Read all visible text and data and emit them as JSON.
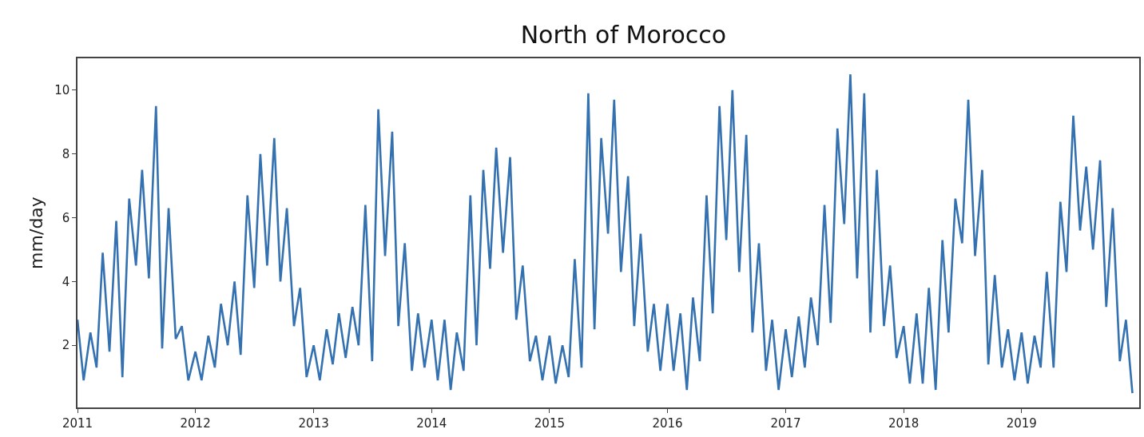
{
  "chart_data": {
    "type": "line",
    "title": "North of Morocco",
    "ylabel": "mm/day",
    "x": [
      "2011-01-01",
      "2011-01-20",
      "2011-02-10",
      "2011-03-01",
      "2011-03-20",
      "2011-04-10",
      "2011-05-01",
      "2011-05-20",
      "2011-06-10",
      "2011-07-01",
      "2011-07-20",
      "2011-08-10",
      "2011-09-01",
      "2011-09-20",
      "2011-10-10",
      "2011-11-01",
      "2011-11-20",
      "2011-12-10",
      "2012-01-01",
      "2012-01-20",
      "2012-02-10",
      "2012-03-01",
      "2012-03-20",
      "2012-04-10",
      "2012-05-01",
      "2012-05-20",
      "2012-06-10",
      "2012-07-01",
      "2012-07-20",
      "2012-08-10",
      "2012-09-01",
      "2012-09-20",
      "2012-10-10",
      "2012-11-01",
      "2012-11-20",
      "2012-12-10",
      "2013-01-01",
      "2013-01-20",
      "2013-02-10",
      "2013-03-01",
      "2013-03-20",
      "2013-04-10",
      "2013-05-01",
      "2013-05-20",
      "2013-06-10",
      "2013-07-01",
      "2013-07-20",
      "2013-08-10",
      "2013-09-01",
      "2013-09-20",
      "2013-10-10",
      "2013-11-01",
      "2013-11-20",
      "2013-12-10",
      "2014-01-01",
      "2014-01-20",
      "2014-02-10",
      "2014-03-01",
      "2014-03-20",
      "2014-04-10",
      "2014-05-01",
      "2014-05-20",
      "2014-06-10",
      "2014-07-01",
      "2014-07-20",
      "2014-08-10",
      "2014-09-01",
      "2014-09-20",
      "2014-10-10",
      "2014-11-01",
      "2014-11-20",
      "2014-12-10",
      "2015-01-01",
      "2015-01-20",
      "2015-02-10",
      "2015-03-01",
      "2015-03-20",
      "2015-04-10",
      "2015-05-01",
      "2015-05-20",
      "2015-06-10",
      "2015-07-01",
      "2015-07-20",
      "2015-08-10",
      "2015-09-01",
      "2015-09-20",
      "2015-10-10",
      "2015-11-01",
      "2015-11-20",
      "2015-12-10",
      "2016-01-01",
      "2016-01-20",
      "2016-02-10",
      "2016-03-01",
      "2016-03-20",
      "2016-04-10",
      "2016-05-01",
      "2016-05-20",
      "2016-06-10",
      "2016-07-01",
      "2016-07-20",
      "2016-08-10",
      "2016-09-01",
      "2016-09-20",
      "2016-10-10",
      "2016-11-01",
      "2016-11-20",
      "2016-12-10",
      "2017-01-01",
      "2017-01-20",
      "2017-02-10",
      "2017-03-01",
      "2017-03-20",
      "2017-04-10",
      "2017-05-01",
      "2017-05-20",
      "2017-06-10",
      "2017-07-01",
      "2017-07-20",
      "2017-08-10",
      "2017-09-01",
      "2017-09-20",
      "2017-10-10",
      "2017-11-01",
      "2017-11-20",
      "2017-12-10",
      "2018-01-01",
      "2018-01-20",
      "2018-02-10",
      "2018-03-01",
      "2018-03-20",
      "2018-04-10",
      "2018-05-01",
      "2018-05-20",
      "2018-06-10",
      "2018-07-01",
      "2018-07-20",
      "2018-08-10",
      "2018-09-01",
      "2018-09-20",
      "2018-10-10",
      "2018-11-01",
      "2018-11-20",
      "2018-12-10",
      "2019-01-01",
      "2019-01-20",
      "2019-02-10",
      "2019-03-01",
      "2019-03-20",
      "2019-04-10",
      "2019-05-01",
      "2019-05-20",
      "2019-06-10",
      "2019-07-01",
      "2019-07-20",
      "2019-08-10",
      "2019-09-01",
      "2019-09-20",
      "2019-10-10",
      "2019-11-01",
      "2019-11-20",
      "2019-12-10"
    ],
    "series": [
      {
        "color": "#3471b0",
        "values": [
          2.8,
          0.9,
          2.4,
          1.3,
          4.9,
          1.8,
          5.9,
          1.0,
          6.6,
          4.5,
          7.5,
          4.1,
          9.5,
          1.9,
          6.3,
          2.2,
          2.6,
          0.9,
          1.8,
          0.9,
          2.3,
          1.3,
          3.3,
          2.0,
          4.0,
          1.7,
          6.7,
          3.8,
          8.0,
          4.5,
          8.5,
          4.0,
          6.3,
          2.6,
          3.8,
          1.0,
          2.0,
          0.9,
          2.5,
          1.4,
          3.0,
          1.6,
          3.2,
          2.0,
          6.4,
          1.5,
          9.4,
          4.8,
          8.7,
          2.6,
          5.2,
          1.2,
          3.0,
          1.3,
          2.8,
          0.9,
          2.8,
          0.6,
          2.4,
          1.2,
          6.7,
          2.0,
          7.5,
          4.4,
          8.2,
          4.9,
          7.9,
          2.8,
          4.5,
          1.5,
          2.3,
          0.9,
          2.3,
          0.8,
          2.0,
          1.0,
          4.7,
          1.3,
          9.9,
          2.5,
          8.5,
          5.5,
          9.7,
          4.3,
          7.3,
          2.6,
          5.5,
          1.8,
          3.3,
          1.2,
          3.3,
          1.2,
          3.0,
          0.6,
          3.5,
          1.5,
          6.7,
          3.0,
          9.5,
          5.3,
          10.0,
          4.3,
          8.6,
          2.4,
          5.2,
          1.2,
          2.8,
          0.6,
          2.5,
          1.0,
          2.9,
          1.3,
          3.5,
          2.0,
          6.4,
          2.7,
          8.8,
          5.8,
          10.5,
          4.1,
          9.9,
          2.4,
          7.5,
          2.6,
          4.5,
          1.6,
          2.6,
          0.8,
          3.0,
          0.8,
          3.8,
          0.6,
          5.3,
          2.4,
          6.6,
          5.2,
          9.7,
          4.8,
          7.5,
          1.4,
          4.2,
          1.3,
          2.5,
          0.9,
          2.4,
          0.8,
          2.3,
          1.3,
          4.3,
          1.3,
          6.5,
          4.3,
          9.2,
          5.6,
          7.6,
          5.0,
          7.8,
          3.2,
          6.3,
          1.5,
          2.8,
          0.5
        ]
      }
    ],
    "xlim": [
      "2011-01-01",
      "2019-12-31"
    ],
    "xticks": [
      {
        "value": "2011-01-01",
        "label": "2011"
      },
      {
        "value": "2012-01-01",
        "label": "2012"
      },
      {
        "value": "2013-01-01",
        "label": "2013"
      },
      {
        "value": "2014-01-01",
        "label": "2014"
      },
      {
        "value": "2015-01-01",
        "label": "2015"
      },
      {
        "value": "2016-01-01",
        "label": "2016"
      },
      {
        "value": "2017-01-01",
        "label": "2017"
      },
      {
        "value": "2018-01-01",
        "label": "2018"
      },
      {
        "value": "2019-01-01",
        "label": "2019"
      }
    ],
    "ylim": [
      0.05,
      11
    ],
    "yticks": [
      2,
      4,
      6,
      8,
      10
    ],
    "marker": "none",
    "line_style": "solid"
  }
}
